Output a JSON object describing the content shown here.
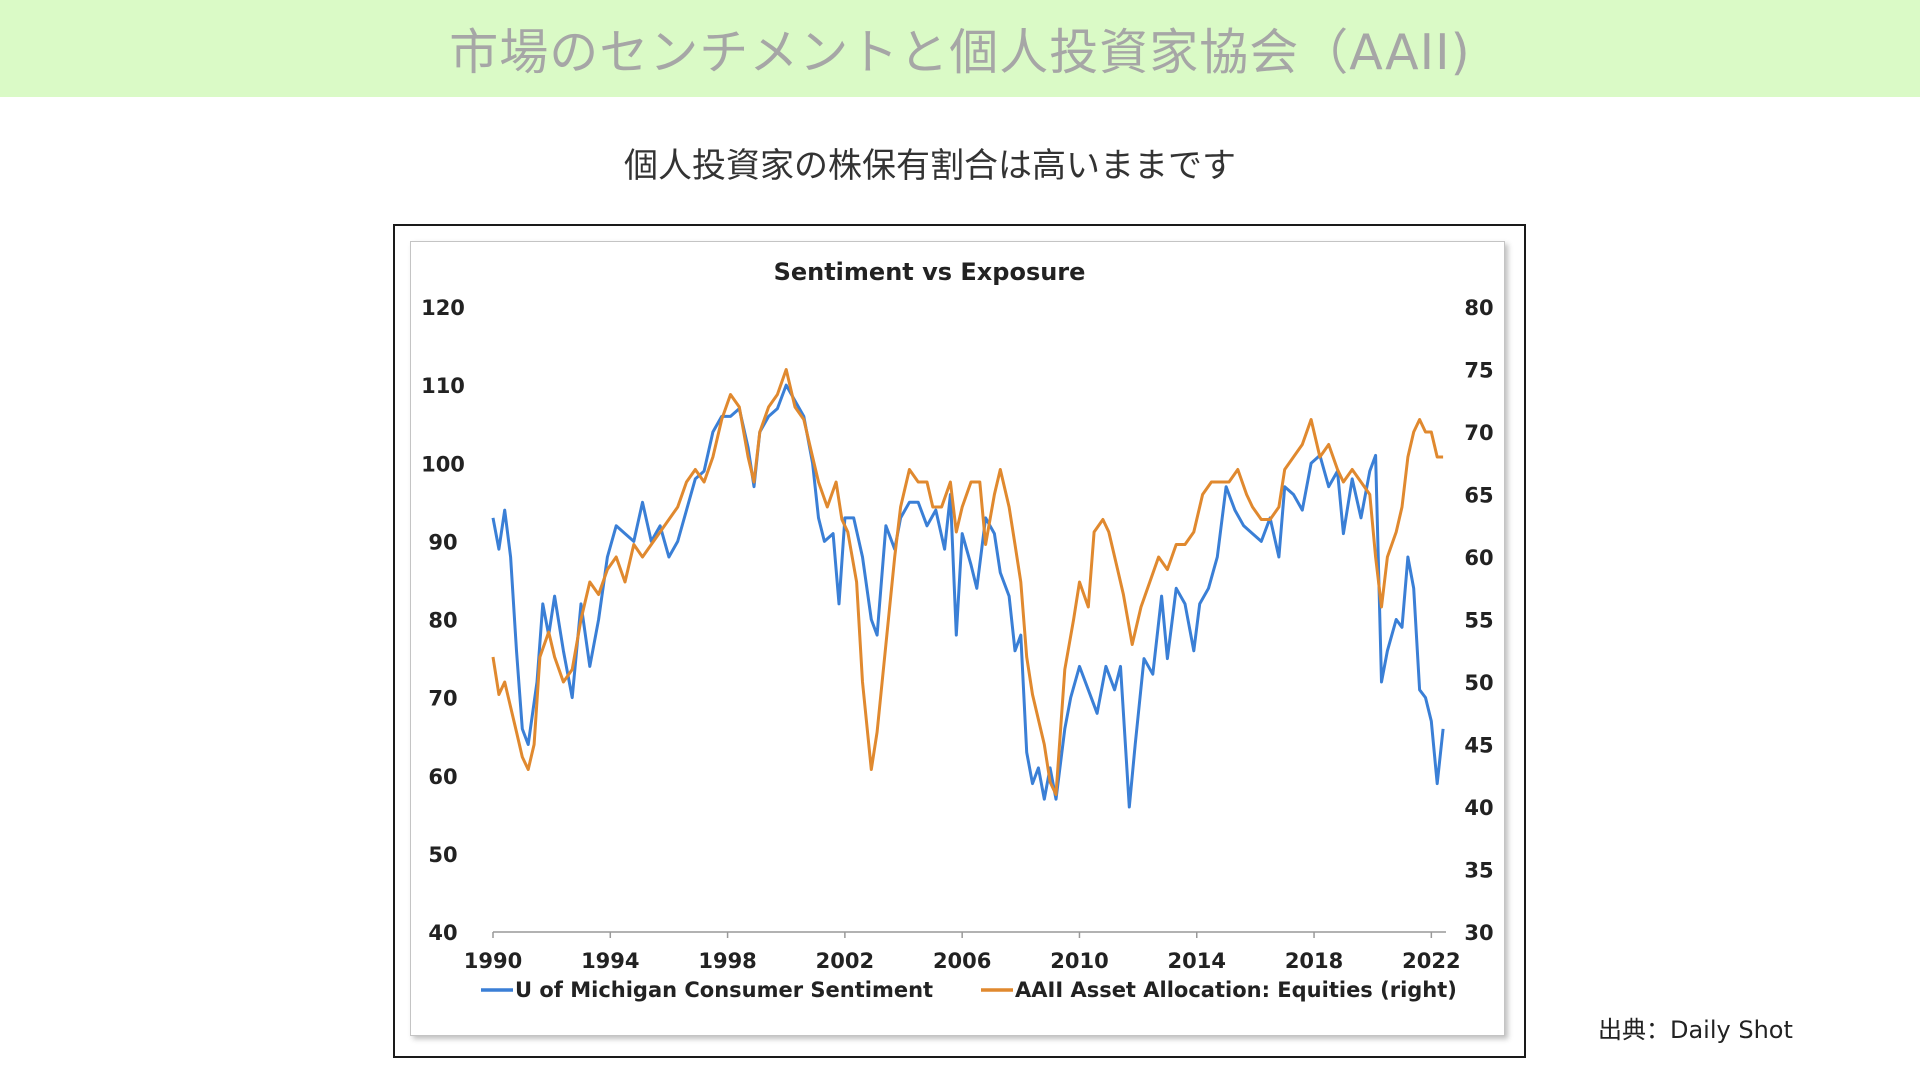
{
  "banner": {
    "title": "市場のセンチメントと個人投資家協会（AAII)"
  },
  "subtitle": "個人投資家の株保有割合は高いままです",
  "source": "出典：Daily Shot",
  "chart_data": {
    "type": "line",
    "title": "Sentiment vs Exposure",
    "grid": false,
    "legend_position": "bottom",
    "x_range": [
      1990,
      2022.5
    ],
    "x_ticks": [
      "1990",
      "1994",
      "1998",
      "2002",
      "2006",
      "2010",
      "2014",
      "2018",
      "2022"
    ],
    "y_left": {
      "range": [
        40,
        120
      ],
      "ticks": [
        "40",
        "50",
        "60",
        "70",
        "80",
        "90",
        "100",
        "110",
        "120"
      ]
    },
    "y_right": {
      "range": [
        30,
        80
      ],
      "ticks": [
        "30",
        "35",
        "40",
        "45",
        "50",
        "55",
        "60",
        "65",
        "70",
        "75",
        "80"
      ]
    },
    "series": [
      {
        "name": "U of Michigan Consumer Sentiment",
        "axis": "left",
        "color": "#3a7fd6",
        "points": [
          [
            1990.0,
            93
          ],
          [
            1990.2,
            89
          ],
          [
            1990.4,
            94
          ],
          [
            1990.6,
            88
          ],
          [
            1990.8,
            76
          ],
          [
            1991.0,
            66
          ],
          [
            1991.2,
            64
          ],
          [
            1991.5,
            72
          ],
          [
            1991.7,
            82
          ],
          [
            1991.9,
            78
          ],
          [
            1992.1,
            83
          ],
          [
            1992.4,
            76
          ],
          [
            1992.7,
            70
          ],
          [
            1993.0,
            82
          ],
          [
            1993.3,
            74
          ],
          [
            1993.6,
            80
          ],
          [
            1993.9,
            88
          ],
          [
            1994.2,
            92
          ],
          [
            1994.5,
            91
          ],
          [
            1994.8,
            90
          ],
          [
            1995.1,
            95
          ],
          [
            1995.4,
            90
          ],
          [
            1995.7,
            92
          ],
          [
            1996.0,
            88
          ],
          [
            1996.3,
            90
          ],
          [
            1996.6,
            94
          ],
          [
            1996.9,
            98
          ],
          [
            1997.2,
            99
          ],
          [
            1997.5,
            104
          ],
          [
            1997.8,
            106
          ],
          [
            1998.1,
            106
          ],
          [
            1998.4,
            107
          ],
          [
            1998.7,
            102
          ],
          [
            1998.9,
            97
          ],
          [
            1999.1,
            104
          ],
          [
            1999.4,
            106
          ],
          [
            1999.7,
            107
          ],
          [
            2000.0,
            110
          ],
          [
            2000.3,
            108
          ],
          [
            2000.6,
            106
          ],
          [
            2000.9,
            100
          ],
          [
            2001.1,
            93
          ],
          [
            2001.3,
            90
          ],
          [
            2001.6,
            91
          ],
          [
            2001.8,
            82
          ],
          [
            2002.0,
            93
          ],
          [
            2002.3,
            93
          ],
          [
            2002.6,
            88
          ],
          [
            2002.9,
            80
          ],
          [
            2003.1,
            78
          ],
          [
            2003.4,
            92
          ],
          [
            2003.7,
            89
          ],
          [
            2003.9,
            93
          ],
          [
            2004.2,
            95
          ],
          [
            2004.5,
            95
          ],
          [
            2004.8,
            92
          ],
          [
            2005.1,
            94
          ],
          [
            2005.4,
            89
          ],
          [
            2005.6,
            96
          ],
          [
            2005.8,
            78
          ],
          [
            2006.0,
            91
          ],
          [
            2006.3,
            87
          ],
          [
            2006.5,
            84
          ],
          [
            2006.8,
            93
          ],
          [
            2007.1,
            91
          ],
          [
            2007.3,
            86
          ],
          [
            2007.6,
            83
          ],
          [
            2007.8,
            76
          ],
          [
            2008.0,
            78
          ],
          [
            2008.2,
            63
          ],
          [
            2008.4,
            59
          ],
          [
            2008.6,
            61
          ],
          [
            2008.8,
            57
          ],
          [
            2009.0,
            61
          ],
          [
            2009.2,
            57
          ],
          [
            2009.5,
            66
          ],
          [
            2009.7,
            70
          ],
          [
            2010.0,
            74
          ],
          [
            2010.3,
            71
          ],
          [
            2010.6,
            68
          ],
          [
            2010.9,
            74
          ],
          [
            2011.2,
            71
          ],
          [
            2011.4,
            74
          ],
          [
            2011.7,
            56
          ],
          [
            2011.9,
            64
          ],
          [
            2012.2,
            75
          ],
          [
            2012.5,
            73
          ],
          [
            2012.8,
            83
          ],
          [
            2013.0,
            75
          ],
          [
            2013.3,
            84
          ],
          [
            2013.6,
            82
          ],
          [
            2013.9,
            76
          ],
          [
            2014.1,
            82
          ],
          [
            2014.4,
            84
          ],
          [
            2014.7,
            88
          ],
          [
            2015.0,
            97
          ],
          [
            2015.3,
            94
          ],
          [
            2015.6,
            92
          ],
          [
            2015.9,
            91
          ],
          [
            2016.2,
            90
          ],
          [
            2016.5,
            93
          ],
          [
            2016.8,
            88
          ],
          [
            2017.0,
            97
          ],
          [
            2017.3,
            96
          ],
          [
            2017.6,
            94
          ],
          [
            2017.9,
            100
          ],
          [
            2018.2,
            101
          ],
          [
            2018.5,
            97
          ],
          [
            2018.8,
            99
          ],
          [
            2019.0,
            91
          ],
          [
            2019.3,
            98
          ],
          [
            2019.6,
            93
          ],
          [
            2019.9,
            99
          ],
          [
            2020.1,
            101
          ],
          [
            2020.3,
            72
          ],
          [
            2020.5,
            76
          ],
          [
            2020.8,
            80
          ],
          [
            2021.0,
            79
          ],
          [
            2021.2,
            88
          ],
          [
            2021.4,
            84
          ],
          [
            2021.6,
            71
          ],
          [
            2021.8,
            70
          ],
          [
            2022.0,
            67
          ],
          [
            2022.2,
            59
          ],
          [
            2022.4,
            66
          ]
        ]
      },
      {
        "name": "AAII Asset Allocation: Equities (right)",
        "axis": "right",
        "color": "#e0892f",
        "points": [
          [
            1990.0,
            52
          ],
          [
            1990.2,
            49
          ],
          [
            1990.4,
            50
          ],
          [
            1990.6,
            48
          ],
          [
            1990.8,
            46
          ],
          [
            1991.0,
            44
          ],
          [
            1991.2,
            43
          ],
          [
            1991.4,
            45
          ],
          [
            1991.6,
            52
          ],
          [
            1991.9,
            54
          ],
          [
            1992.1,
            52
          ],
          [
            1992.4,
            50
          ],
          [
            1992.7,
            51
          ],
          [
            1993.0,
            55
          ],
          [
            1993.3,
            58
          ],
          [
            1993.6,
            57
          ],
          [
            1993.9,
            59
          ],
          [
            1994.2,
            60
          ],
          [
            1994.5,
            58
          ],
          [
            1994.8,
            61
          ],
          [
            1995.1,
            60
          ],
          [
            1995.4,
            61
          ],
          [
            1995.7,
            62
          ],
          [
            1996.0,
            63
          ],
          [
            1996.3,
            64
          ],
          [
            1996.6,
            66
          ],
          [
            1996.9,
            67
          ],
          [
            1997.2,
            66
          ],
          [
            1997.5,
            68
          ],
          [
            1997.8,
            71
          ],
          [
            1998.1,
            73
          ],
          [
            1998.4,
            72
          ],
          [
            1998.7,
            68
          ],
          [
            1998.9,
            66
          ],
          [
            1999.1,
            70
          ],
          [
            1999.4,
            72
          ],
          [
            1999.7,
            73
          ],
          [
            2000.0,
            75
          ],
          [
            2000.3,
            72
          ],
          [
            2000.6,
            71
          ],
          [
            2000.9,
            68
          ],
          [
            2001.1,
            66
          ],
          [
            2001.4,
            64
          ],
          [
            2001.7,
            66
          ],
          [
            2001.9,
            63
          ],
          [
            2002.1,
            62
          ],
          [
            2002.4,
            58
          ],
          [
            2002.6,
            50
          ],
          [
            2002.9,
            43
          ],
          [
            2003.1,
            46
          ],
          [
            2003.4,
            53
          ],
          [
            2003.7,
            60
          ],
          [
            2003.9,
            64
          ],
          [
            2004.2,
            67
          ],
          [
            2004.5,
            66
          ],
          [
            2004.8,
            66
          ],
          [
            2005.0,
            64
          ],
          [
            2005.3,
            64
          ],
          [
            2005.6,
            66
          ],
          [
            2005.8,
            62
          ],
          [
            2006.0,
            64
          ],
          [
            2006.3,
            66
          ],
          [
            2006.6,
            66
          ],
          [
            2006.8,
            61
          ],
          [
            2007.1,
            65
          ],
          [
            2007.3,
            67
          ],
          [
            2007.6,
            64
          ],
          [
            2007.8,
            61
          ],
          [
            2008.0,
            58
          ],
          [
            2008.2,
            52
          ],
          [
            2008.4,
            49
          ],
          [
            2008.6,
            47
          ],
          [
            2008.8,
            45
          ],
          [
            2009.0,
            42
          ],
          [
            2009.2,
            41
          ],
          [
            2009.5,
            51
          ],
          [
            2009.8,
            55
          ],
          [
            2010.0,
            58
          ],
          [
            2010.3,
            56
          ],
          [
            2010.5,
            62
          ],
          [
            2010.8,
            63
          ],
          [
            2011.0,
            62
          ],
          [
            2011.3,
            59
          ],
          [
            2011.5,
            57
          ],
          [
            2011.8,
            53
          ],
          [
            2012.1,
            56
          ],
          [
            2012.4,
            58
          ],
          [
            2012.7,
            60
          ],
          [
            2013.0,
            59
          ],
          [
            2013.3,
            61
          ],
          [
            2013.6,
            61
          ],
          [
            2013.9,
            62
          ],
          [
            2014.2,
            65
          ],
          [
            2014.5,
            66
          ],
          [
            2014.8,
            66
          ],
          [
            2015.1,
            66
          ],
          [
            2015.4,
            67
          ],
          [
            2015.7,
            65
          ],
          [
            2015.9,
            64
          ],
          [
            2016.2,
            63
          ],
          [
            2016.5,
            63
          ],
          [
            2016.8,
            64
          ],
          [
            2017.0,
            67
          ],
          [
            2017.3,
            68
          ],
          [
            2017.6,
            69
          ],
          [
            2017.9,
            71
          ],
          [
            2018.2,
            68
          ],
          [
            2018.5,
            69
          ],
          [
            2018.8,
            67
          ],
          [
            2019.0,
            66
          ],
          [
            2019.3,
            67
          ],
          [
            2019.6,
            66
          ],
          [
            2019.9,
            65
          ],
          [
            2020.1,
            60
          ],
          [
            2020.3,
            56
          ],
          [
            2020.5,
            60
          ],
          [
            2020.8,
            62
          ],
          [
            2021.0,
            64
          ],
          [
            2021.2,
            68
          ],
          [
            2021.4,
            70
          ],
          [
            2021.6,
            71
          ],
          [
            2021.8,
            70
          ],
          [
            2022.0,
            70
          ],
          [
            2022.2,
            68
          ],
          [
            2022.4,
            68
          ]
        ]
      }
    ]
  }
}
